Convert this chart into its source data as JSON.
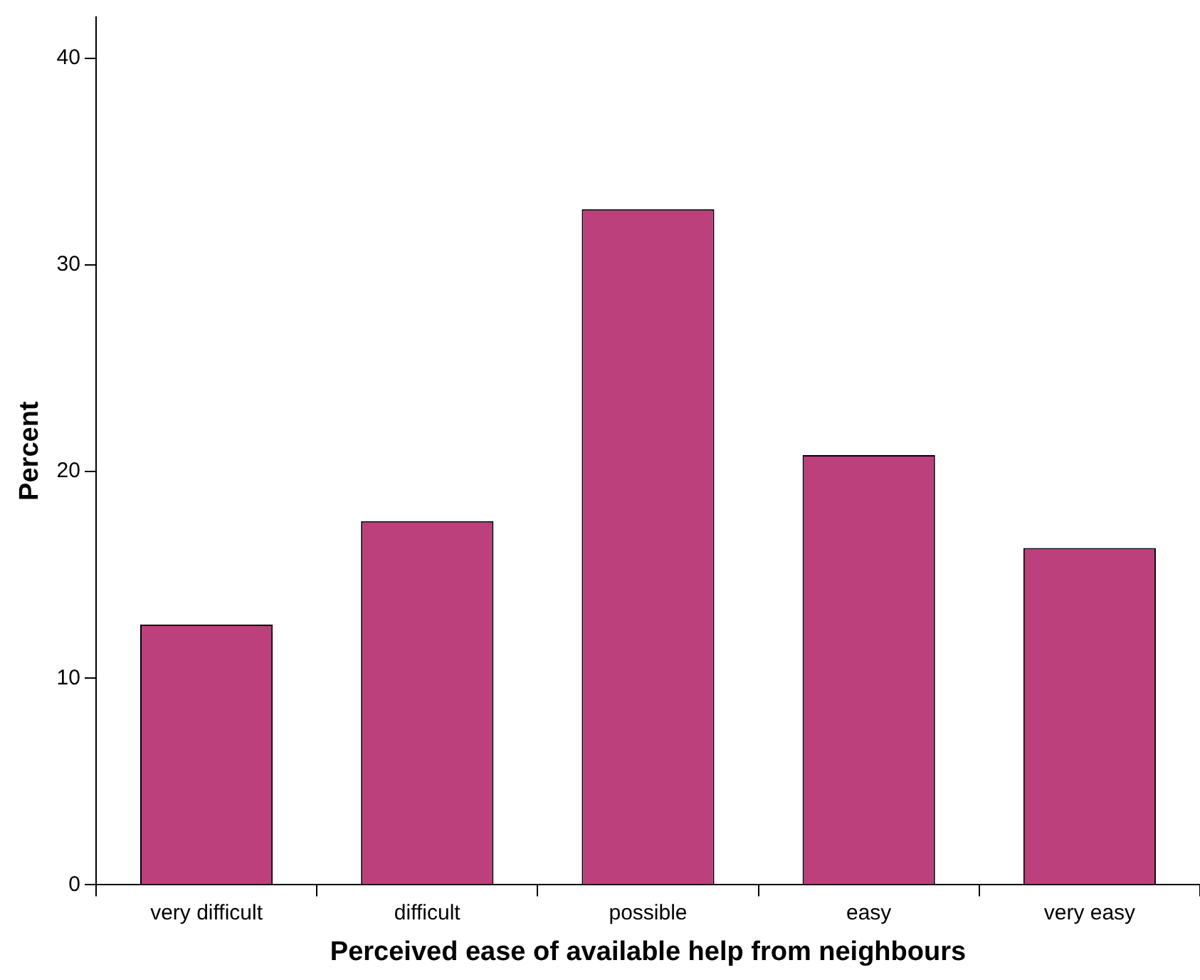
{
  "chart_data": {
    "type": "bar",
    "xlabel": "Perceived ease of available help from neighbours",
    "ylabel": "Percent",
    "categories": [
      "very difficult",
      "difficult",
      "possible",
      "easy",
      "very easy"
    ],
    "values": [
      12.6,
      17.6,
      32.7,
      20.8,
      16.3
    ],
    "color": "#bc407c",
    "ylim": [
      0,
      42
    ],
    "yticks": [
      0,
      10,
      20,
      30,
      40
    ],
    "grid": false,
    "legend": false
  }
}
